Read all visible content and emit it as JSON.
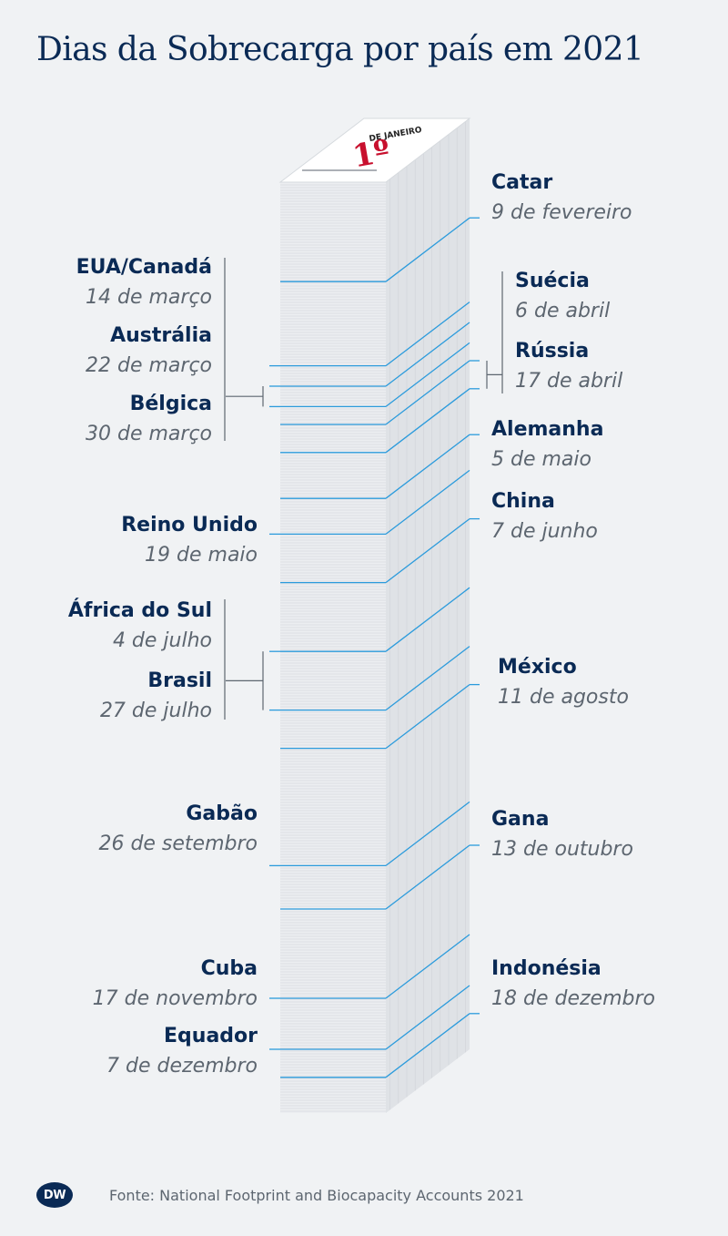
{
  "title": "Dias da Sobrecarga por país em 2021",
  "chart_data": {
    "type": "timeline",
    "title": "Dias da Sobrecarga por país em 2021",
    "calendar_top": {
      "label": "DE JANEIRO",
      "day": "1º"
    },
    "year_days": 365,
    "points": [
      {
        "country": "Catar",
        "date": "9 de fevereiro",
        "day_of_year": 40,
        "side": "right"
      },
      {
        "country": "EUA/Canadá",
        "date": "14 de março",
        "day_of_year": 73,
        "side": "left"
      },
      {
        "country": "Austrália",
        "date": "22 de março",
        "day_of_year": 81,
        "side": "left"
      },
      {
        "country": "Bélgica",
        "date": "30 de março",
        "day_of_year": 89,
        "side": "left"
      },
      {
        "country": "Suécia",
        "date": "6 de abril",
        "day_of_year": 96,
        "side": "right"
      },
      {
        "country": "Rússia",
        "date": "17 de abril",
        "day_of_year": 107,
        "side": "right"
      },
      {
        "country": "Alemanha",
        "date": "5 de maio",
        "day_of_year": 125,
        "side": "right"
      },
      {
        "country": "Reino Unido",
        "date": "19 de maio",
        "day_of_year": 139,
        "side": "left"
      },
      {
        "country": "China",
        "date": "7 de junho",
        "day_of_year": 158,
        "side": "right"
      },
      {
        "country": "África do Sul",
        "date": "4 de julho",
        "day_of_year": 185,
        "side": "left"
      },
      {
        "country": "Brasil",
        "date": "27 de julho",
        "day_of_year": 208,
        "side": "left"
      },
      {
        "country": "México",
        "date": "11 de agosto",
        "day_of_year": 223,
        "side": "right"
      },
      {
        "country": "Gabão",
        "date": "26 de setembro",
        "day_of_year": 269,
        "side": "left"
      },
      {
        "country": "Gana",
        "date": "13 de outubro",
        "day_of_year": 286,
        "side": "right"
      },
      {
        "country": "Cuba",
        "date": "17 de novembro",
        "day_of_year": 321,
        "side": "left"
      },
      {
        "country": "Equador",
        "date": "7 de dezembro",
        "day_of_year": 341,
        "side": "left"
      },
      {
        "country": "Indonésia",
        "date": "18 de dezembro",
        "day_of_year": 352,
        "side": "right"
      }
    ]
  },
  "footer": {
    "logo": "DW",
    "source": "Fonte: National Footprint and Biocapacity Accounts 2021"
  }
}
